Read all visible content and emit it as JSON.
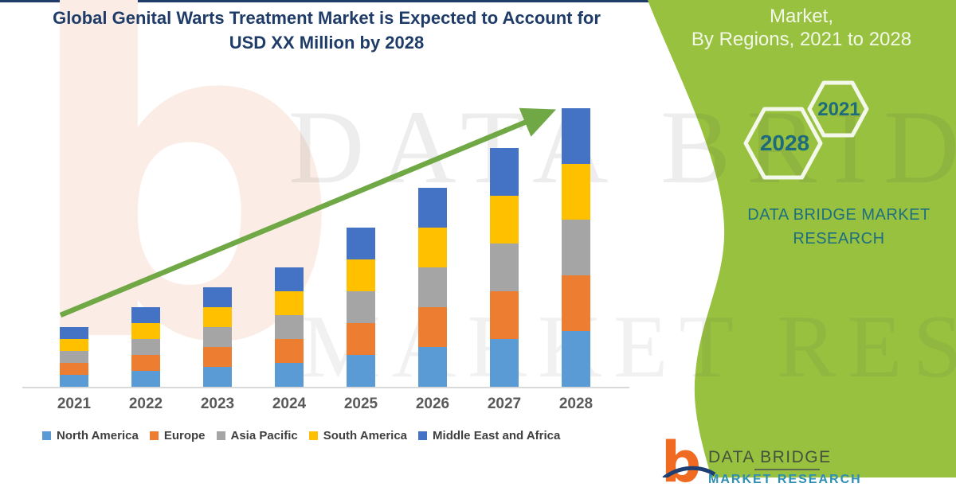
{
  "header": {
    "title_line1": "Global Genital Warts Treatment Market is Expected to Account for",
    "title_line2": "USD XX Million by 2028"
  },
  "sidebar": {
    "heading_line1": "Market,",
    "heading_line2": "By Regions, 2021 to 2028",
    "hexagons": [
      {
        "label": "2021"
      },
      {
        "label": "2028"
      }
    ],
    "brand_line1": "DATA BRIDGE MARKET",
    "brand_line2": "RESEARCH",
    "accent_green": "#97C13F",
    "teal": "#1E6F80"
  },
  "watermark": {
    "letter": "b",
    "row1": "DATA BRIDGE",
    "row2": "MARKET RESEARCH"
  },
  "footer_logo": {
    "monogram": "b",
    "name": "DATA BRIDGE",
    "subtitle": "MARKET RESEARCH"
  },
  "chart_data": {
    "type": "bar",
    "stacked": true,
    "title": "Global Genital Warts Treatment Market is Expected to Account for USD XX Million by 2028",
    "xlabel": "",
    "ylabel": "",
    "units": "USD XX Million (axis values not shown; relative stacked heights)",
    "gridlines": false,
    "legend_position": "bottom",
    "categories": [
      "2021",
      "2022",
      "2023",
      "2024",
      "2025",
      "2026",
      "2027",
      "2028"
    ],
    "series": [
      {
        "name": "North America",
        "color": "#5B9BD5",
        "values": [
          15,
          20,
          25,
          30,
          40,
          50,
          60,
          70
        ]
      },
      {
        "name": "Europe",
        "color": "#ED7D31",
        "values": [
          15,
          20,
          25,
          30,
          40,
          50,
          60,
          70
        ]
      },
      {
        "name": "Asia Pacific",
        "color": "#A5A5A5",
        "values": [
          15,
          20,
          25,
          30,
          40,
          50,
          60,
          70
        ]
      },
      {
        "name": "South America",
        "color": "#FFC000",
        "values": [
          15,
          20,
          25,
          30,
          40,
          50,
          60,
          70
        ]
      },
      {
        "name": "Middle East and Africa",
        "color": "#4472C4",
        "values": [
          15,
          20,
          25,
          30,
          40,
          50,
          60,
          70
        ]
      }
    ],
    "totals": [
      75,
      100,
      125,
      150,
      200,
      250,
      300,
      350
    ],
    "trend_arrow": {
      "color": "#6FA845",
      "from_category": "2021",
      "to_category": "2028",
      "direction": "up"
    }
  }
}
